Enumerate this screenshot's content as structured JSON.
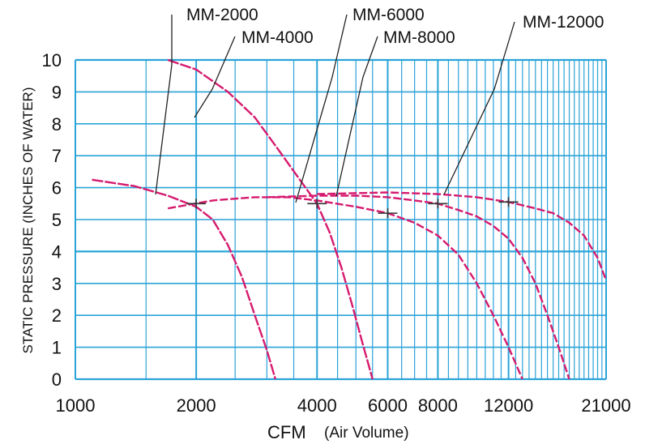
{
  "chart_data": {
    "type": "line",
    "xlabel": "CFM",
    "xlabel_sub": "(Air Volume)",
    "ylabel": "STATIC PRESSURE (INCHES OF WATER)",
    "ylim": [
      0,
      10
    ],
    "x_scale": "log",
    "xlim": [
      1000,
      21000
    ],
    "x_ticks": [
      "1000",
      "2000",
      "4000",
      "6000",
      "8000",
      "12000",
      "21000"
    ],
    "y_ticks": [
      "0",
      "1",
      "2",
      "3",
      "4",
      "5",
      "6",
      "7",
      "8",
      "9",
      "10"
    ],
    "grid": true,
    "colors": {
      "grid": "#2aa3d8",
      "curve": "#d61a6e",
      "text": "#111111"
    },
    "series": [
      {
        "name": "MM-2000",
        "points": [
          [
            1100,
            6.25
          ],
          [
            1400,
            6.05
          ],
          [
            1700,
            5.75
          ],
          [
            2000,
            5.4
          ],
          [
            2200,
            5.0
          ],
          [
            2400,
            4.2
          ],
          [
            2600,
            3.2
          ],
          [
            2800,
            2.0
          ],
          [
            3000,
            0.9
          ],
          [
            3150,
            0.0
          ]
        ]
      },
      {
        "name": "MM-4000",
        "points": [
          [
            1700,
            10.0
          ],
          [
            2000,
            9.7
          ],
          [
            2400,
            9.0
          ],
          [
            2800,
            8.2
          ],
          [
            3200,
            7.2
          ],
          [
            3600,
            6.3
          ],
          [
            4000,
            5.5
          ],
          [
            4300,
            4.6
          ],
          [
            4600,
            3.5
          ],
          [
            4900,
            2.3
          ],
          [
            5200,
            1.1
          ],
          [
            5500,
            0.0
          ]
        ]
      },
      {
        "name": "MM-6000",
        "points": [
          [
            1700,
            5.35
          ],
          [
            2200,
            5.6
          ],
          [
            2800,
            5.7
          ],
          [
            3400,
            5.7
          ],
          [
            4000,
            5.6
          ],
          [
            5000,
            5.4
          ],
          [
            6000,
            5.2
          ],
          [
            7000,
            4.9
          ],
          [
            8000,
            4.5
          ],
          [
            9000,
            3.9
          ],
          [
            10000,
            3.0
          ],
          [
            11000,
            2.0
          ],
          [
            12000,
            1.0
          ],
          [
            13000,
            0.0
          ]
        ]
      },
      {
        "name": "MM-8000",
        "points": [
          [
            3000,
            5.7
          ],
          [
            4000,
            5.75
          ],
          [
            5000,
            5.75
          ],
          [
            6000,
            5.7
          ],
          [
            7000,
            5.6
          ],
          [
            8000,
            5.5
          ],
          [
            9000,
            5.3
          ],
          [
            10000,
            5.1
          ],
          [
            11000,
            4.8
          ],
          [
            12000,
            4.4
          ],
          [
            13000,
            3.8
          ],
          [
            14000,
            3.0
          ],
          [
            15000,
            2.0
          ],
          [
            16000,
            1.0
          ],
          [
            17000,
            0.0
          ]
        ]
      },
      {
        "name": "MM-12000",
        "points": [
          [
            4000,
            5.8
          ],
          [
            6000,
            5.85
          ],
          [
            8000,
            5.8
          ],
          [
            10000,
            5.7
          ],
          [
            12000,
            5.55
          ],
          [
            14000,
            5.35
          ],
          [
            15500,
            5.2
          ],
          [
            17000,
            4.9
          ],
          [
            18500,
            4.5
          ],
          [
            20000,
            3.8
          ],
          [
            21000,
            3.1
          ]
        ]
      }
    ]
  }
}
